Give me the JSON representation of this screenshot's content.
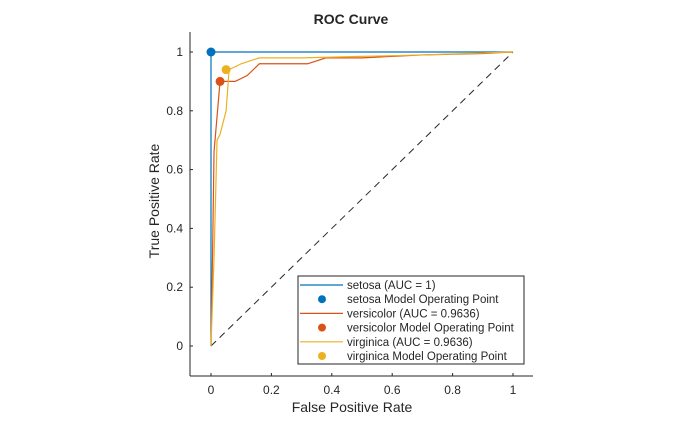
{
  "chart_data": {
    "type": "line",
    "title": "ROC Curve",
    "xlabel": "False Positive Rate",
    "ylabel": "True Positive Rate",
    "xlim": [
      -0.07,
      1.07
    ],
    "ylim": [
      -0.1,
      1.07
    ],
    "xticks": [
      0,
      0.2,
      0.4,
      0.6,
      0.8,
      1
    ],
    "xtick_labels": [
      "0",
      "0.2",
      "0.4",
      "0.6",
      "0.8",
      "1"
    ],
    "yticks": [
      0,
      0.2,
      0.4,
      0.6,
      0.8,
      1
    ],
    "ytick_labels": [
      "0",
      "0.2",
      "0.4",
      "0.6",
      "0.8",
      "1"
    ],
    "grid": false,
    "legend_position": "bottom-right",
    "diagonal": {
      "x": [
        0,
        1
      ],
      "y": [
        0,
        1
      ],
      "style": "dashed",
      "color": "#000000"
    },
    "series": [
      {
        "name": "setosa (AUC = 1)",
        "color": "#0072BD",
        "x": [
          0,
          0,
          1
        ],
        "y": [
          0,
          1,
          1
        ],
        "operating_point": {
          "label": "setosa Model Operating Point",
          "x": 0,
          "y": 1
        }
      },
      {
        "name": "versicolor (AUC = 0.9636)",
        "color": "#D95319",
        "x": [
          0,
          0.005,
          0.01,
          0.02,
          0.03,
          0.04,
          0.08,
          0.12,
          0.16,
          0.2,
          0.32,
          0.38,
          0.5,
          0.7,
          0.9,
          1
        ],
        "y": [
          0,
          0.3,
          0.66,
          0.78,
          0.9,
          0.9,
          0.9,
          0.92,
          0.96,
          0.96,
          0.96,
          0.98,
          0.98,
          0.99,
          0.995,
          1
        ],
        "operating_point": {
          "label": "versicolor Model Operating Point",
          "x": 0.03,
          "y": 0.9
        }
      },
      {
        "name": "virginica (AUC = 0.9636)",
        "color": "#EDB120",
        "x": [
          0,
          0.01,
          0.02,
          0.03,
          0.05,
          0.06,
          0.1,
          0.16,
          0.3,
          0.5,
          0.7,
          1
        ],
        "y": [
          0,
          0.3,
          0.7,
          0.72,
          0.8,
          0.94,
          0.96,
          0.98,
          0.98,
          0.985,
          0.99,
          1
        ],
        "operating_point": {
          "label": "virginica Model Operating Point",
          "x": 0.05,
          "y": 0.94
        }
      }
    ],
    "legend": [
      {
        "label": "setosa (AUC = 1)",
        "kind": "line",
        "color": "#0072BD"
      },
      {
        "label": "setosa Model Operating Point",
        "kind": "marker",
        "color": "#0072BD"
      },
      {
        "label": "versicolor (AUC = 0.9636)",
        "kind": "line",
        "color": "#D95319"
      },
      {
        "label": "versicolor Model Operating Point",
        "kind": "marker",
        "color": "#D95319"
      },
      {
        "label": "virginica (AUC = 0.9636)",
        "kind": "line",
        "color": "#EDB120"
      },
      {
        "label": "virginica Model Operating Point",
        "kind": "marker",
        "color": "#EDB120"
      }
    ]
  }
}
